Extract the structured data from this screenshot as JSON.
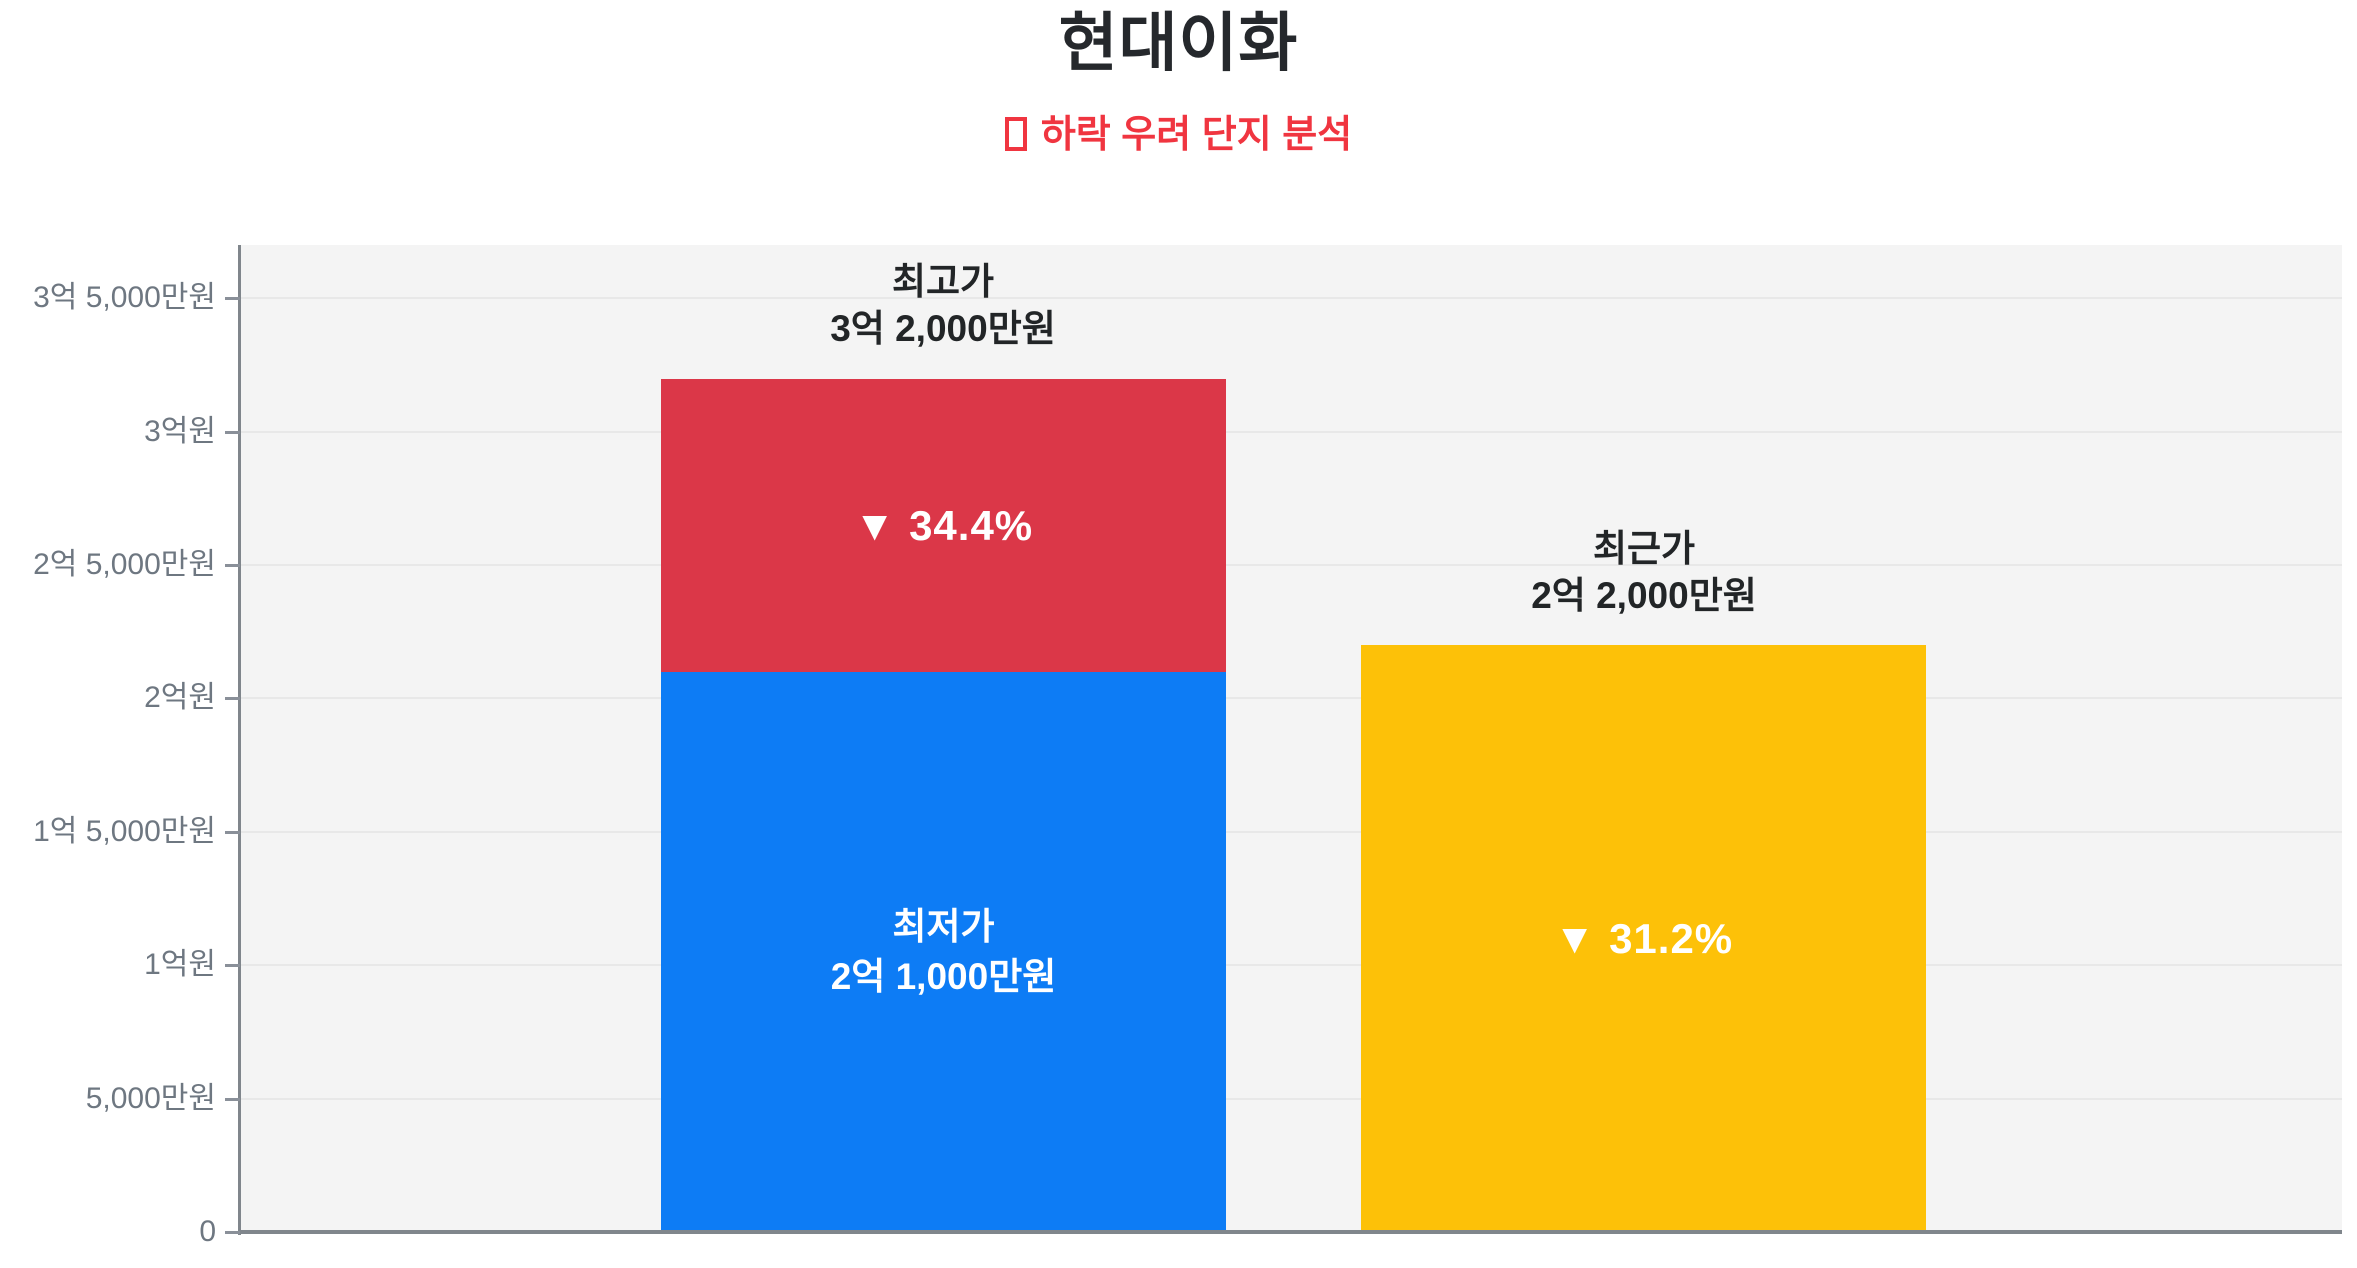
{
  "header": {
    "title": "현대이화",
    "subtitle": "하락 우려 단지 분석",
    "subtitle_icon": "missing-glyph-box",
    "subtitle_color": "#f03540",
    "title_color": "#25282c"
  },
  "chart_data": {
    "type": "bar",
    "stacked": true,
    "title": "현대이화",
    "subtitle": "하락 우려 단지 분석",
    "xlabel": "",
    "ylabel": "",
    "unit": "만원",
    "ylim": [
      0,
      37000
    ],
    "grid": true,
    "legend": "none",
    "plot_background": "#f4f4f4",
    "yticks": [
      {
        "value": 0,
        "label": "0"
      },
      {
        "value": 5000,
        "label": "5,000만원"
      },
      {
        "value": 10000,
        "label": "1억원"
      },
      {
        "value": 15000,
        "label": "1억 5,000만원"
      },
      {
        "value": 20000,
        "label": "2억원"
      },
      {
        "value": 25000,
        "label": "2억 5,000만원"
      },
      {
        "value": 30000,
        "label": "3억원"
      },
      {
        "value": 35000,
        "label": "3억 5,000만원"
      }
    ],
    "bars": [
      {
        "name": "peak-vs-low-bar",
        "x_frac": 0.3345,
        "total_value": 32000,
        "annotation_lines": [
          "최고가",
          "3억 2,000만원"
        ],
        "segments": [
          {
            "name": "lowest-price-segment",
            "value": 21000,
            "color": "#0d7cf5",
            "label_lines": [
              "최저가",
              "2억 1,000만원"
            ],
            "label_style": "price",
            "label_color": "#ffffff"
          },
          {
            "name": "drop-from-peak-segment",
            "value": 11000,
            "color": "#db3748",
            "label_lines": [
              "▼ 34.4%"
            ],
            "label_style": "pct",
            "label_color": "#ffffff"
          }
        ]
      },
      {
        "name": "recent-price-bar",
        "x_frac": 0.6679,
        "total_value": 22000,
        "annotation_lines": [
          "최근가",
          "2억 2,000만원"
        ],
        "segments": [
          {
            "name": "recent-price-segment",
            "value": 22000,
            "color": "#fdc108",
            "label_lines": [
              "▼ 31.2%"
            ],
            "label_style": "pct",
            "label_color": "#ffffff"
          }
        ]
      }
    ],
    "colors": {
      "gridline": "#e8e8e8",
      "axis_line": "#80868c",
      "tick_label": "#6e7781",
      "annotation_text": "#222527",
      "bar_blue": "#0d7cf5",
      "bar_red": "#db3748",
      "bar_yellow": "#fdc108"
    }
  }
}
